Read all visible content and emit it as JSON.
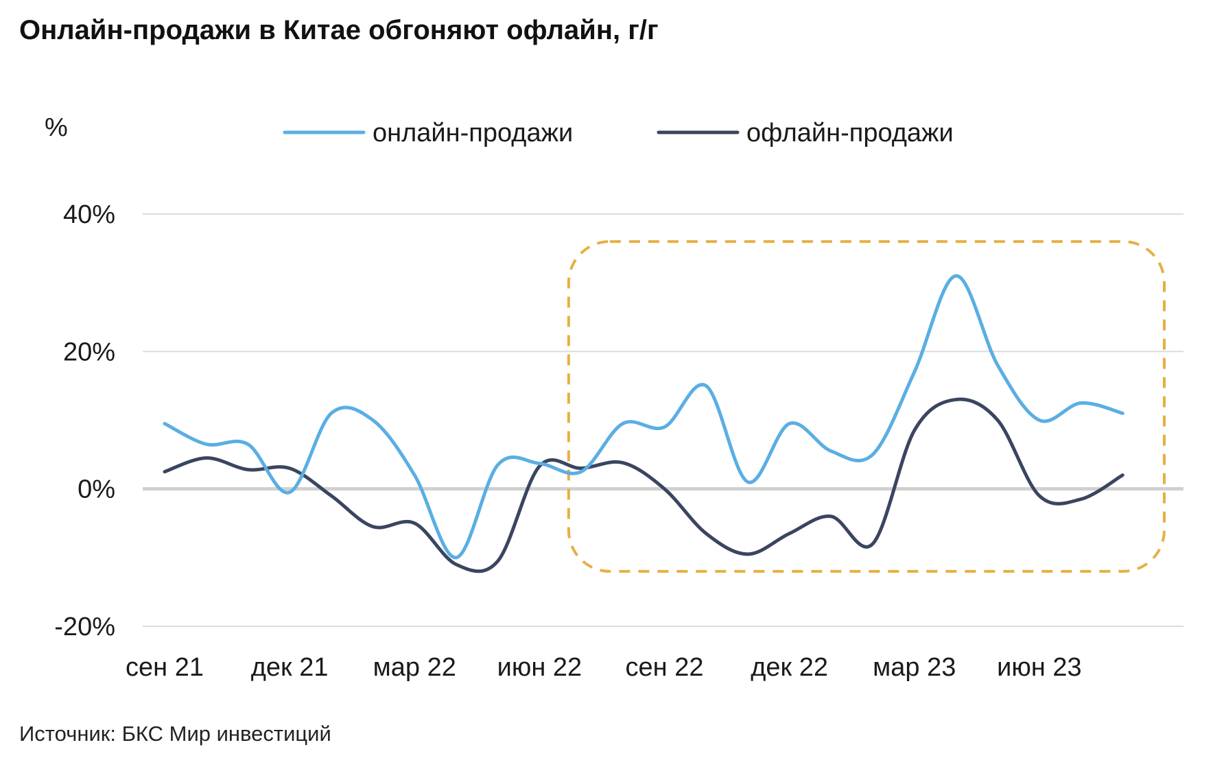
{
  "title": "Онлайн-продажи в Китае обгоняют офлайн, г/г",
  "source": "Источник: БКС Мир инвестиций",
  "colors": {
    "online": "#5aaee3",
    "offline": "#3a4560",
    "highlight": "#e6b043",
    "grid": "#dcdcdc",
    "zero_line": "#d0d0d0"
  },
  "chart_data": {
    "type": "line",
    "title": "Онлайн-продажи в Китае обгоняют офлайн, г/г",
    "ylabel": "%",
    "xlabel": "",
    "ylim": [
      -20,
      40
    ],
    "yticks": [
      40,
      20,
      0,
      -20
    ],
    "ytick_labels": [
      "40%",
      "20%",
      "0%",
      "-20%"
    ],
    "grid": true,
    "legend": "top-center",
    "x_tick_labels": [
      "сен 21",
      "дек 21",
      "мар 22",
      "июн 22",
      "сен 22",
      "дек 22",
      "мар 23",
      "июн 23"
    ],
    "x_tick_positions": [
      0,
      3,
      6,
      9,
      12,
      15,
      18,
      21
    ],
    "x": [
      0,
      1,
      2,
      3,
      4,
      5,
      6,
      7,
      8,
      9,
      10,
      11,
      12,
      13,
      14,
      15,
      16,
      17,
      18,
      19,
      20,
      21,
      22,
      23
    ],
    "highlight_range": {
      "x_from": 9.7,
      "x_to": 24,
      "y_from": -12,
      "y_to": 36
    },
    "series": [
      {
        "name": "онлайн-продажи",
        "color": "#5aaee3",
        "values": [
          9.5,
          6.5,
          6.5,
          -0.5,
          11.0,
          10.0,
          2.0,
          -10.0,
          3.5,
          3.7,
          2.5,
          9.5,
          9.0,
          15.0,
          1.0,
          9.5,
          5.5,
          5.0,
          17.0,
          31.0,
          18.0,
          10.0,
          12.5,
          11.0
        ]
      },
      {
        "name": "офлайн-продажи",
        "color": "#3a4560",
        "values": [
          2.5,
          4.5,
          2.8,
          3.0,
          -1.0,
          -5.5,
          -5.0,
          -11.0,
          -10.5,
          3.3,
          3.0,
          3.8,
          0.0,
          -6.5,
          -9.5,
          -6.5,
          -4.0,
          -8.0,
          8.5,
          13.0,
          10.0,
          -1.0,
          -1.5,
          2.0
        ]
      }
    ]
  }
}
